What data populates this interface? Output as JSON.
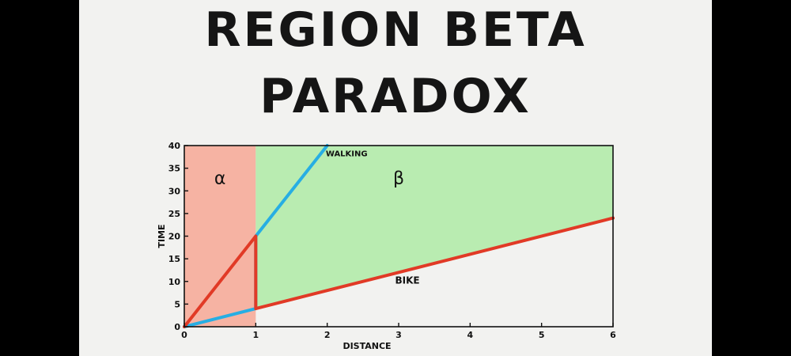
{
  "title_line1": "REGION BETA",
  "title_line2": "PARADOX",
  "colors": {
    "region_alpha": "#f6b3a3",
    "region_beta": "#b9ecb1",
    "walking": "#27aee3",
    "bike": "#e13a26",
    "background": "#f2f2f0"
  },
  "chart_data": {
    "type": "line",
    "xlabel": "DISTANCE",
    "ylabel": "TIME",
    "xlim": [
      0,
      6
    ],
    "ylim": [
      0,
      40
    ],
    "xticks": [
      0,
      1,
      2,
      3,
      4,
      5,
      6
    ],
    "yticks": [
      0,
      5,
      10,
      15,
      20,
      25,
      30,
      35,
      40
    ],
    "grid": false,
    "series": [
      {
        "name": "WALKING",
        "color": "#27aee3",
        "points": [
          [
            0,
            0
          ],
          [
            1,
            4
          ],
          [
            1,
            20
          ],
          [
            2,
            40
          ]
        ]
      },
      {
        "name": "BIKE",
        "color": "#e13a26",
        "points": [
          [
            0,
            0
          ],
          [
            1,
            20
          ],
          [
            1,
            4
          ],
          [
            6,
            24
          ]
        ]
      }
    ],
    "regions": [
      {
        "label": "α",
        "color": "#f6b3a3"
      },
      {
        "label": "β",
        "color": "#b9ecb1"
      }
    ]
  }
}
